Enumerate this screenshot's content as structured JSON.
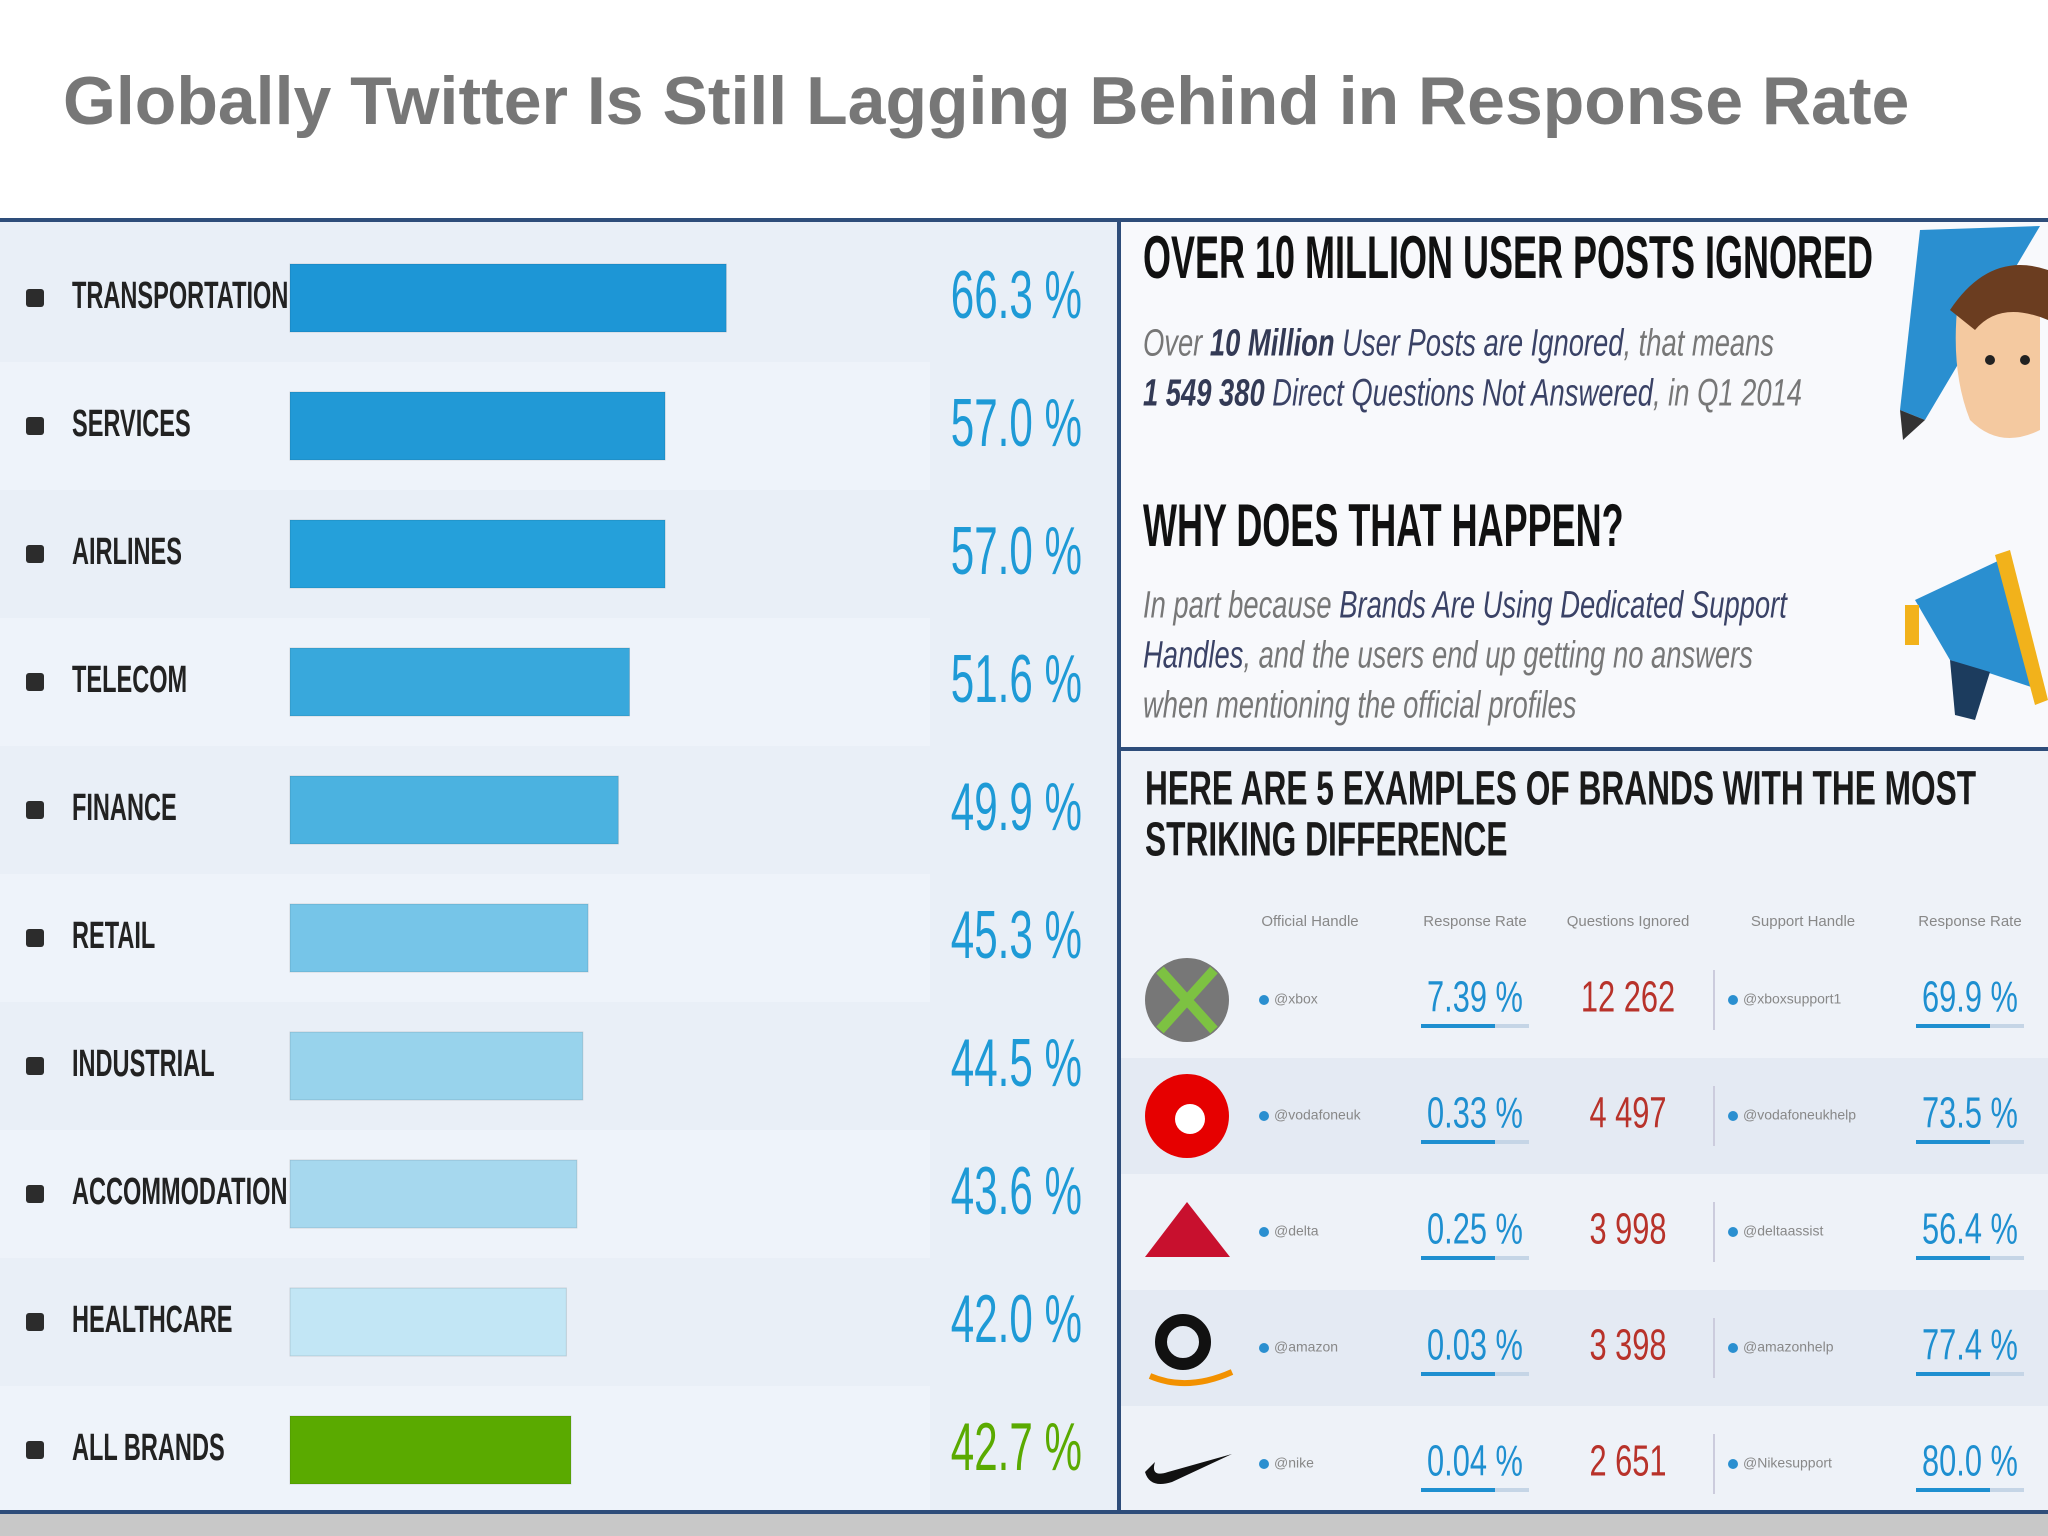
{
  "title": "Globally Twitter Is Still Lagging Behind in Response Rate",
  "chart_data": {
    "type": "bar",
    "orientation": "horizontal",
    "categories": [
      "TRANSPORTATION",
      "SERVICES",
      "AIRLINES",
      "TELECOM",
      "FINANCE",
      "RETAIL",
      "INDUSTRIAL",
      "ACCOMMODATION",
      "HEALTHCARE",
      "ALL BRANDS"
    ],
    "values": [
      66.3,
      57.0,
      57.0,
      51.6,
      49.9,
      45.3,
      44.5,
      43.6,
      42.0,
      42.7
    ],
    "value_labels": [
      "66.3 %",
      "57.0 %",
      "57.0 %",
      "51.6 %",
      "49.9 %",
      "45.3 %",
      "44.5 %",
      "43.6 %",
      "42.0 %",
      "42.7 %"
    ],
    "colors": [
      "#1d96d6",
      "#2199d6",
      "#25a0da",
      "#38a8dc",
      "#4bb2e0",
      "#76c5e8",
      "#98d3ec",
      "#a6d8ee",
      "#c2e6f5",
      "#5aaa00"
    ],
    "label_colors": [
      "#1e9ad6",
      "#1e9ad6",
      "#1e9ad6",
      "#1e9ad6",
      "#1e9ad6",
      "#1e9ad6",
      "#1e9ad6",
      "#1e9ad6",
      "#1e9ad6",
      "#5aaa00"
    ],
    "xlim": [
      0,
      100
    ]
  },
  "panels": {
    "ignored": {
      "heading": "OVER 10 MILLION USER POSTS IGNORED",
      "lines": [
        [
          {
            "text": "Over ",
            "style": "plain"
          },
          {
            "text": "10 Million",
            "style": "strong"
          },
          {
            "text": " User Posts are Ignored",
            "style": "emph"
          },
          {
            "text": ", that means",
            "style": "plain"
          }
        ],
        [
          {
            "text": "1 549 380",
            "style": "strong"
          },
          {
            "text": " Direct Questions Not Answered",
            "style": "emph"
          },
          {
            "text": ", in Q1 2014",
            "style": "plain"
          }
        ]
      ]
    },
    "why": {
      "heading": "WHY DOES THAT HAPPEN?",
      "lines": [
        [
          {
            "text": "In part because ",
            "style": "plain"
          },
          {
            "text": "Brands Are Using Dedicated Support",
            "style": "emph"
          }
        ],
        [
          {
            "text": "Handles",
            "style": "emph"
          },
          {
            "text": ", and the users end up getting no answers",
            "style": "plain"
          }
        ],
        [
          {
            "text": "when mentioning the official profiles",
            "style": "plain"
          }
        ]
      ]
    },
    "examples": {
      "heading_lines": [
        "HERE ARE 5 EXAMPLES OF BRANDS WITH THE MOST",
        "STRIKING DIFFERENCE"
      ],
      "columns": [
        "Official Handle",
        "Response Rate",
        "Questions Ignored",
        "Support Handle",
        "Response Rate"
      ],
      "rows": [
        [
          "@xbox",
          "7.39 %",
          "12 262",
          "@xboxsupport1",
          "69.9 %"
        ],
        [
          "@vodafoneuk",
          "0.33 %",
          "4 497",
          "@vodafoneukhelp",
          "73.5 %"
        ],
        [
          "@delta",
          "0.25 %",
          "3 998",
          "@deltaassist",
          "56.4 %"
        ],
        [
          "@amazon",
          "0.03 %",
          "3 398",
          "@amazonhelp",
          "77.4 %"
        ],
        [
          "@nike",
          "0.04 %",
          "2 651",
          "@Nikesupport",
          "80.0 %"
        ]
      ]
    }
  }
}
